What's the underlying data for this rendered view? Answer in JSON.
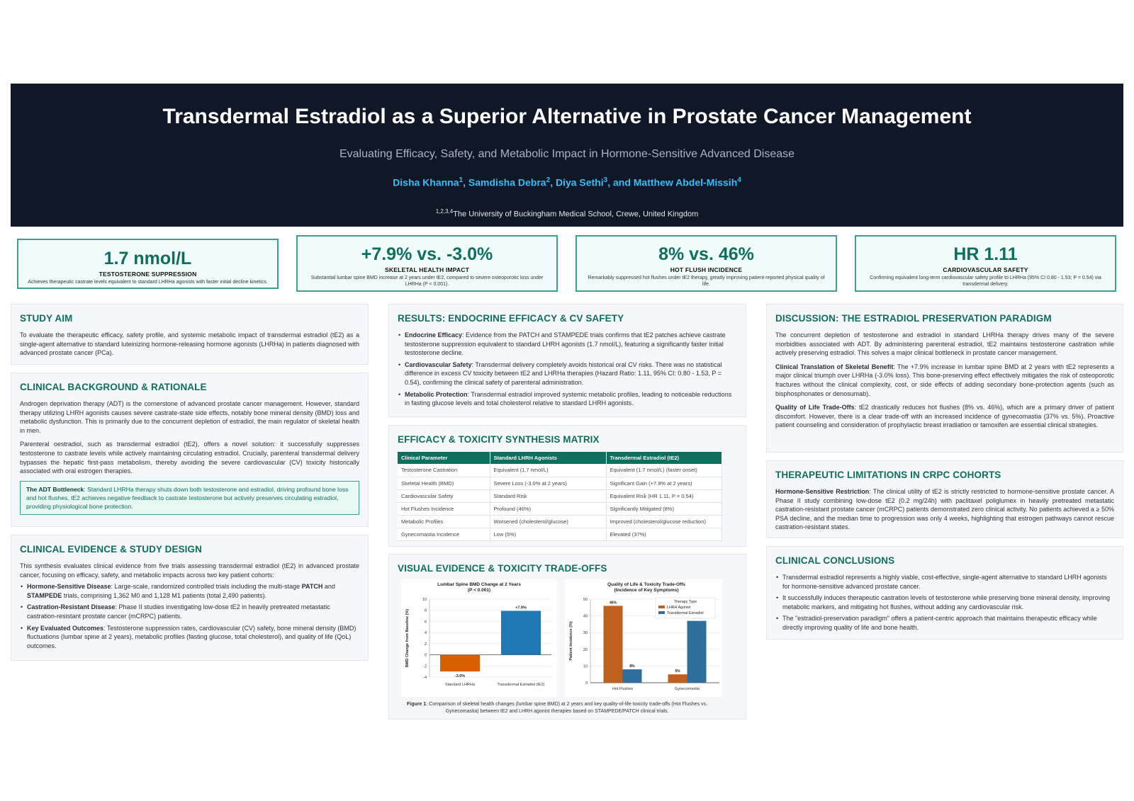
{
  "header": {
    "title": "Transdermal Estradiol as a Superior Alternative in Prostate Cancer Management",
    "subtitle": "Evaluating Efficacy, Safety, and Metabolic Impact in Hormone-Sensitive Advanced Disease",
    "authors": [
      {
        "name": "Disha Khanna",
        "sup": "1"
      },
      {
        "name": "Samdisha Debra",
        "sup": "2"
      },
      {
        "name": "Diya Sethi",
        "sup": "3"
      },
      {
        "name": "Matthew Abdel-Missih",
        "sup": "4"
      }
    ],
    "affiliation_sup": "1,2,3,4",
    "affiliation": "The University of Buckingham Medical School, Crewe, United Kingdom"
  },
  "metrics": [
    {
      "value": "1.7 nmol/L",
      "label": "TESTOSTERONE SUPPRESSION",
      "desc": "Achieves therapeutic castrate levels equivalent to standard LHRHa agonists with faster initial decline kinetics."
    },
    {
      "value": "+7.9% vs. -3.0%",
      "label": "SKELETAL HEALTH IMPACT",
      "desc": "Substantial lumbar spine BMD increase at 2 years under tE2, compared to severe osteoporotic loss under LHRHa (P < 0.001)."
    },
    {
      "value": "8% vs. 46%",
      "label": "HOT FLUSH INCIDENCE",
      "desc": "Remarkably suppressed hot flushes under tE2 therapy, greatly improving patient-reported physical quality of life."
    },
    {
      "value": "HR 1.11",
      "label": "CARDIOVASCULAR SAFETY",
      "desc": "Confirming equivalent long-term cardiovascular safety profile to LHRHa (95% CI 0.80 - 1.53; P = 0.54) via transdermal delivery."
    }
  ],
  "study_aim": {
    "title": "STUDY AIM",
    "text": "To evaluate the therapeutic efficacy, safety profile, and systemic metabolic impact of transdermal estradiol (tE2) as a single-agent alternative to standard luteinizing hormone-releasing hormone agonists (LHRHa) in patients diagnosed with advanced prostate cancer (PCa)."
  },
  "background": {
    "title": "CLINICAL BACKGROUND & RATIONALE",
    "p1": "Androgen deprivation therapy (ADT) is the cornerstone of advanced prostate cancer management. However, standard therapy utilizing LHRH agonists causes severe castrate-state side effects, notably bone mineral density (BMD) loss and metabolic dysfunction. This is primarily due to the concurrent depletion of estradiol, the main regulator of skeletal health in men.",
    "p2": "Parenteral oestradiol, such as transdermal estradiol (tE2), offers a novel solution: it successfully suppresses testosterone to castrate levels while actively maintaining circulating estradiol. Crucially, parenteral transdermal delivery bypasses the hepatic first-pass metabolism, thereby avoiding the severe cardiovascular (CV) toxicity historically associated with oral estrogen therapies.",
    "callout_bold": "The ADT Bottleneck",
    "callout_text": ": Standard LHRHa therapy shuts down both testosterone and estradiol, driving profound bone loss and hot flushes. tE2 achieves negative feedback to castrate testosterone but actively preserves circulating estradiol, providing physiological bone protection."
  },
  "evidence": {
    "title": "CLINICAL EVIDENCE & STUDY DESIGN",
    "intro": "This synthesis evaluates clinical evidence from five trials assessing transdermal estradiol (tE2) in advanced prostate cancer, focusing on efficacy, safety, and metabolic impacts across two key patient cohorts:",
    "b1_bold": "Hormone-Sensitive Disease",
    "b1_a": ": Large-scale, randomized controlled trials including the multi-stage ",
    "b1_patch": "PATCH",
    "b1_and": " and ",
    "b1_stampede": "STAMPEDE",
    "b1_b": " trials, comprising 1,362 M0 and 1,128 M1 patients (total 2,490 patients).",
    "b2_bold": "Castration-Resistant Disease",
    "b2_text": ": Phase II studies investigating low-dose tE2 in heavily pretreated metastatic castration-resistant prostate cancer (mCRPC) patients.",
    "b3_bold": "Key Evaluated Outcomes",
    "b3_text": ": Testosterone suppression rates, cardiovascular (CV) safety, bone mineral density (BMD) fluctuations (lumbar spine at 2 years), metabolic profiles (fasting glucose, total cholesterol), and quality of life (QoL) outcomes."
  },
  "results": {
    "title": "RESULTS: ENDOCRINE EFFICACY & CV SAFETY",
    "b1_bold": "Endocrine Efficacy",
    "b1_text": ": Evidence from the PATCH and STAMPEDE trials confirms that tE2 patches achieve castrate testosterone suppression equivalent to standard LHRH agonists (1.7 nmol/L), featuring a significantly faster initial testosterone decline.",
    "b2_bold": "Cardiovascular Safety",
    "b2_text": ": Transdermal delivery completely avoids historical oral CV risks. There was no statistical difference in excess CV toxicity between tE2 and LHRHa therapies (Hazard Ratio: 1.11, 95% CI: 0.80 - 1.53, P = 0.54), confirming the clinical safety of parenteral administration.",
    "b3_bold": "Metabolic Protection",
    "b3_text": ": Transdermal estradiol improved systemic metabolic profiles, leading to noticeable reductions in fasting glucose levels and total cholesterol relative to standard LHRH agonists."
  },
  "matrix": {
    "title": "EFFICACY & TOXICITY SYNTHESIS MATRIX",
    "headers": [
      "Clinical Parameter",
      "Standard LHRH Agonists",
      "Transdermal Estradiol (tE2)"
    ],
    "rows": [
      [
        "Testosterone Castration",
        "Equivalent (1.7 nmol/L)",
        "Equivalent (1.7 nmol/L) (faster onset)"
      ],
      [
        "Skeletal Health (BMD)",
        "Severe Loss (-3.0% at 2 years)",
        "Significant Gain (+7.9% at 2 years)"
      ],
      [
        "Cardiovascular Safety",
        "Standard Risk",
        "Equivalent Risk (HR 1.11, P = 0.54)"
      ],
      [
        "Hot Flushes Incidence",
        "Profound (46%)",
        "Significantly Mitigated (8%)"
      ],
      [
        "Metabolic Profiles",
        "Worsened (cholesterol/glucose)",
        "Improved (cholesterol/glucose reduction)"
      ],
      [
        "Gynecomastia Incidence",
        "Low (5%)",
        "Elevated (37%)"
      ]
    ]
  },
  "visual": {
    "title": "VISUAL EVIDENCE & TOXICITY TRADE-OFFS",
    "caption_bold": "Figure 1",
    "caption": ": Comparison of skeletal health changes (lumbar spine BMD) at 2 years and key quality-of-life toxicity trade-offs (Hot Flushes vs. Gynecomastia) between tE2 and LHRH agonist therapies based on STAMPEDE/PATCH clinical trials."
  },
  "chart_data": [
    {
      "type": "bar",
      "title": "Lumbar Spine BMD Change at 2 Years",
      "subtitle": "(P < 0.001)",
      "ylabel": "BMD Change from Baseline (%)",
      "categories": [
        "Standard LHRHa",
        "Transdermal Estradiol (tE2)"
      ],
      "values": [
        -3.0,
        7.9
      ],
      "data_labels": [
        "-3.0%",
        "+7.9%"
      ],
      "colors": [
        "#d95f02",
        "#1f78b4"
      ],
      "ylim": [
        -4,
        10
      ],
      "yticks": [
        -4,
        -2,
        0,
        2,
        4,
        6,
        8,
        10
      ],
      "grid": true
    },
    {
      "type": "bar",
      "title": "Quality of Life & Toxicity Trade-Offs",
      "subtitle": "(Incidence of Key Symptoms)",
      "ylabel": "Patient Incidence (%)",
      "categories": [
        "Hot Flushes",
        "Gynecomastia"
      ],
      "series": [
        {
          "name": "LHRH Agonist",
          "values": [
            46,
            5
          ],
          "labels": [
            "46%",
            "5%"
          ],
          "color": "#c0601f"
        },
        {
          "name": "Transdermal Estradiol",
          "values": [
            8,
            37
          ],
          "labels": [
            "8%",
            "37%"
          ],
          "color": "#2e6f9e"
        }
      ],
      "legend_title": "Therapy Type",
      "legend": "top-right",
      "ylim": [
        0,
        50
      ],
      "yticks": [
        0,
        10,
        20,
        30,
        40,
        50
      ],
      "grid": true
    }
  ],
  "discussion": {
    "title": "DISCUSSION: THE ESTRADIOL PRESERVATION PARADIGM",
    "p1": "The concurrent depletion of testosterone and estradiol in standard LHRHa therapy drives many of the severe morbidities associated with ADT. By administering parenteral estradiol, tE2 maintains testosterone castration while actively preserving estradiol. This solves a major clinical bottleneck in prostate cancer management.",
    "p2_bold": "Clinical Translation of Skeletal Benefit",
    "p2_text": ": The +7.9% increase in lumbar spine BMD at 2 years with tE2 represents a major clinical triumph over LHRHa (-3.0% loss). This bone-preserving effect effectively mitigates the risk of osteoporotic fractures without the clinical complexity, cost, or side effects of adding secondary bone-protection agents (such as bisphosphonates or denosumab).",
    "p3_bold": "Quality of Life Trade-Offs",
    "p3_text": ": tE2 drastically reduces hot flushes (8% vs. 46%), which are a primary driver of patient discomfort. However, there is a clear trade-off with an increased incidence of gynecomastia (37% vs. 5%). Proactive patient counseling and consideration of prophylactic breast irradiation or tamoxifen are essential clinical strategies."
  },
  "limitations": {
    "title": "THERAPEUTIC LIMITATIONS IN CRPC COHORTS",
    "p_bold": "Hormone-Sensitive Restriction",
    "p_text": ": The clinical utility of tE2 is strictly restricted to hormone-sensitive prostate cancer. A Phase II study combining low-dose tE2 (0.2 mg/24h) with paclitaxel poliglumex in heavily pretreated metastatic castration-resistant prostate cancer (mCRPC) patients demonstrated zero clinical activity. No patients achieved a ≥ 50% PSA decline, and the median time to progression was only 4 weeks, highlighting that estrogen pathways cannot rescue castration-resistant states."
  },
  "conclusions": {
    "title": "CLINICAL CONCLUSIONS",
    "items": [
      "Transdermal estradiol represents a highly viable, cost-effective, single-agent alternative to standard LHRH agonists for hormone-sensitive advanced prostate cancer.",
      "It successfully induces therapeutic castration levels of testosterone while preserving bone mineral density, improving metabolic markers, and mitigating hot flushes, without adding any cardiovascular risk.",
      "The \"estradiol-preservation paradigm\" offers a patient-centric approach that maintains therapeutic efficacy while directly improving quality of life and bone health."
    ]
  }
}
